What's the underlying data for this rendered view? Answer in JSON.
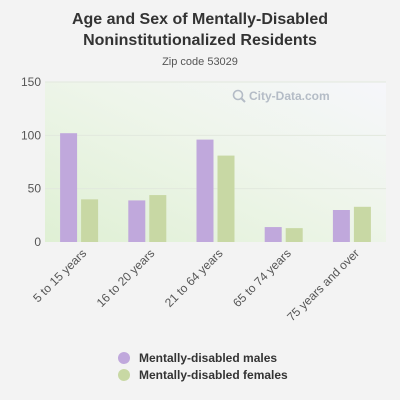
{
  "chart_data": {
    "type": "bar",
    "title": "Age and Sex of Mentally-Disabled Noninstitutionalized Residents",
    "subtitle": "Zip code 53029",
    "watermark": "City-Data.com",
    "categories": [
      "5 to 15 years",
      "16 to 20 years",
      "21 to 64 years",
      "65 to 74 years",
      "75 years and over"
    ],
    "series": [
      {
        "name": "Mentally-disabled males",
        "color": "#c0a8dc",
        "values": [
          102,
          39,
          96,
          14,
          30
        ]
      },
      {
        "name": "Mentally-disabled females",
        "color": "#c8d8a4",
        "values": [
          40,
          44,
          81,
          13,
          33
        ]
      }
    ],
    "yticks": [
      0,
      50,
      100,
      150
    ],
    "ylim": [
      0,
      150
    ],
    "grid": true,
    "legend_position": "bottom"
  }
}
